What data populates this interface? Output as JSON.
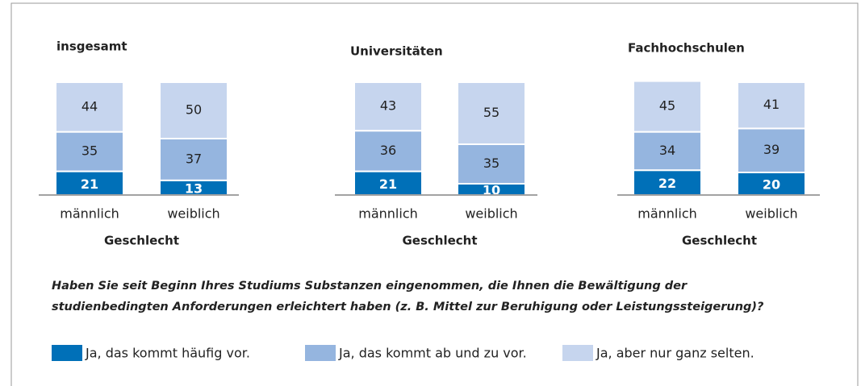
{
  "chart_data": [
    {
      "type": "bar",
      "stacked": true,
      "title": "insgesamt",
      "categories": [
        "männlich",
        "weiblich"
      ],
      "xlabel": "Geschlecht",
      "series": [
        {
          "name": "Ja, das kommt häufig vor.",
          "color": "#0070b8",
          "values": [
            21,
            13
          ]
        },
        {
          "name": "Ja, das kommt ab und zu vor.",
          "color": "#95b5df",
          "values": [
            35,
            37
          ]
        },
        {
          "name": "Ja, aber nur ganz selten.",
          "color": "#c6d5ee",
          "values": [
            44,
            50
          ]
        }
      ]
    },
    {
      "type": "bar",
      "stacked": true,
      "title": "Universitäten",
      "categories": [
        "männlich",
        "weiblich"
      ],
      "xlabel": "Geschlecht",
      "series": [
        {
          "name": "Ja, das kommt häufig vor.",
          "color": "#0070b8",
          "values": [
            21,
            10
          ]
        },
        {
          "name": "Ja, das kommt ab und zu vor.",
          "color": "#95b5df",
          "values": [
            36,
            35
          ]
        },
        {
          "name": "Ja, aber nur ganz selten.",
          "color": "#c6d5ee",
          "values": [
            43,
            55
          ]
        }
      ]
    },
    {
      "type": "bar",
      "stacked": true,
      "title": "Fachhochschulen",
      "categories": [
        "männlich",
        "weiblich"
      ],
      "xlabel": "Geschlecht",
      "series": [
        {
          "name": "Ja, das kommt häufig vor.",
          "color": "#0070b8",
          "values": [
            22,
            20
          ]
        },
        {
          "name": "Ja, das kommt ab und zu vor.",
          "color": "#95b5df",
          "values": [
            34,
            39
          ]
        },
        {
          "name": "Ja, aber nur ganz selten.",
          "color": "#c6d5ee",
          "values": [
            45,
            41
          ]
        }
      ]
    }
  ],
  "question": [
    "Haben Sie seit Beginn Ihres Studiums Substanzen eingenommen, die Ihnen die Bewältigung der",
    "studienbedingten Anforderungen erleichtert haben (z. B. Mittel zur Beruhigung oder Leistungssteigerung)?"
  ]
}
